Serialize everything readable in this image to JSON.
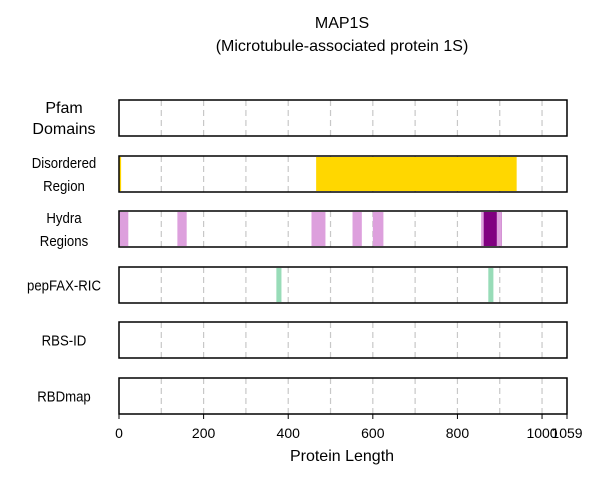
{
  "chart_data": {
    "type": "track",
    "title_lines": [
      "MAP1S",
      "(Microtubule-associated protein 1S)"
    ],
    "xlabel": "Protein Length",
    "xlim": [
      0,
      1059
    ],
    "xticks": [
      0,
      200,
      400,
      600,
      800,
      1000,
      1059
    ],
    "grid": "vertical dashed every 100",
    "grid_values": [
      100,
      200,
      300,
      400,
      500,
      600,
      700,
      800,
      900,
      1000
    ],
    "tracks": [
      {
        "label_lines": [
          "Pfam",
          "Domains"
        ],
        "label_style": "large",
        "segments": []
      },
      {
        "label_lines": [
          "Disordered",
          "Region"
        ],
        "label_style": "narrow",
        "segments": [
          {
            "start": 0,
            "end": 5,
            "color": "#FFD700"
          },
          {
            "start": 466,
            "end": 940,
            "color": "#FFD700"
          }
        ]
      },
      {
        "label_lines": [
          "Hydra",
          "Regions"
        ],
        "label_style": "narrow",
        "segments": [
          {
            "start": 0,
            "end": 22,
            "color": "#DDA0DD"
          },
          {
            "start": 138,
            "end": 160,
            "color": "#DDA0DD"
          },
          {
            "start": 455,
            "end": 488,
            "color": "#DDA0DD"
          },
          {
            "start": 552,
            "end": 574,
            "color": "#DDA0DD"
          },
          {
            "start": 600,
            "end": 625,
            "color": "#DDA0DD"
          },
          {
            "start": 856,
            "end": 862,
            "color": "#DDA0DD"
          },
          {
            "start": 862,
            "end": 905,
            "color": "#800080"
          },
          {
            "start": 893,
            "end": 905,
            "color": "#DDA0DD"
          }
        ]
      },
      {
        "label_lines": [
          "pepFAX-RIC"
        ],
        "label_style": "narrow",
        "segments": [
          {
            "start": 372,
            "end": 384,
            "color": "#98DCB8"
          },
          {
            "start": 873,
            "end": 885,
            "color": "#98DCB8"
          }
        ]
      },
      {
        "label_lines": [
          "RBS-ID"
        ],
        "label_style": "narrow",
        "segments": []
      },
      {
        "label_lines": [
          "RBDmap"
        ],
        "label_style": "narrow",
        "segments": []
      }
    ]
  }
}
